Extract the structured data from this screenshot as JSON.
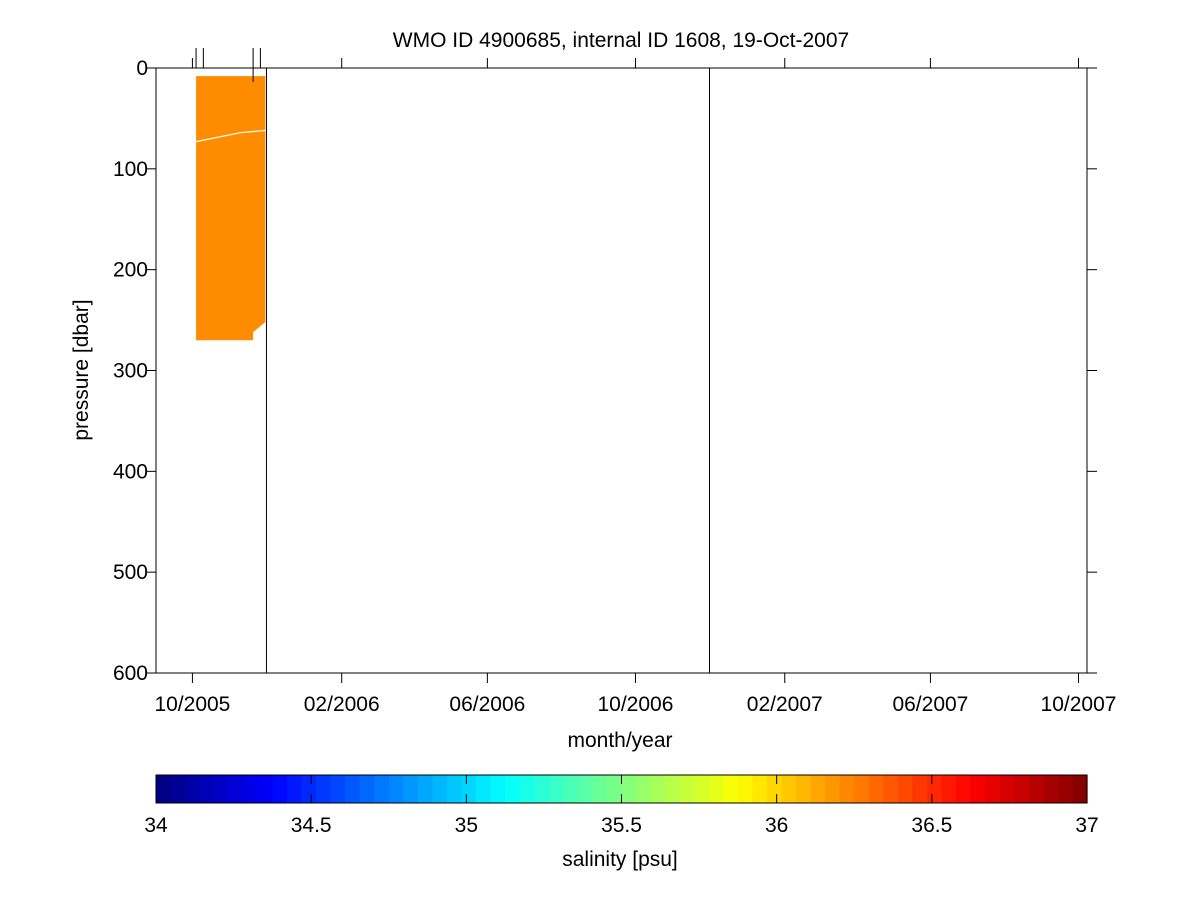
{
  "chart_data": {
    "type": "heatmap",
    "title": "WMO ID 4900685, internal ID 1608, 19-Oct-2007",
    "xlabel": "month/year",
    "ylabel": "pressure [dbar]",
    "x_axis": {
      "range": [
        "2005-09-01",
        "2007-10-08"
      ],
      "ticks": [
        {
          "date": "2005-10-01",
          "label": "10/2005"
        },
        {
          "date": "2006-02-01",
          "label": "02/2006"
        },
        {
          "date": "2006-06-01",
          "label": "06/2006"
        },
        {
          "date": "2006-10-01",
          "label": "10/2006"
        },
        {
          "date": "2007-02-01",
          "label": "02/2007"
        },
        {
          "date": "2007-06-01",
          "label": "06/2007"
        },
        {
          "date": "2007-10-01",
          "label": "10/2007"
        }
      ]
    },
    "y_axis": {
      "range": [
        0,
        600
      ],
      "reversed": true,
      "ticks": [
        0,
        100,
        200,
        300,
        400,
        500,
        600
      ]
    },
    "profile_dates": [
      "2005-10-04",
      "2005-10-10",
      "2005-11-20",
      "2005-11-26"
    ],
    "data_block": {
      "color": "#ff8c00",
      "salinity": 36.1,
      "top_pressure": 8,
      "bottom_edge": [
        {
          "date": "2005-10-04",
          "pressure": 270
        },
        {
          "date": "2005-11-20",
          "pressure": 270
        },
        {
          "date": "2005-11-20",
          "pressure": 262
        },
        {
          "date": "2005-11-30",
          "pressure": 252
        }
      ],
      "contour": [
        {
          "date": "2005-10-04",
          "pressure": 73
        },
        {
          "date": "2005-11-10",
          "pressure": 64
        },
        {
          "date": "2005-11-30",
          "pressure": 62
        }
      ]
    },
    "vertical_lines": [
      "2005-12-01",
      "2006-12-01"
    ],
    "colorbar": {
      "label": "salinity [psu]",
      "range": [
        34,
        37
      ],
      "ticks": [
        "34",
        "34.5",
        "35",
        "35.5",
        "36",
        "36.5",
        "37"
      ],
      "colormap": "jet"
    },
    "grid": false
  }
}
